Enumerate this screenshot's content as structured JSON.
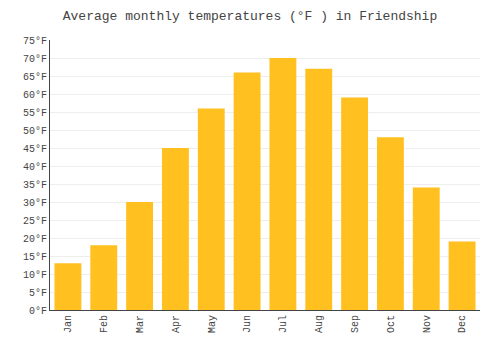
{
  "chart_data": {
    "type": "bar",
    "title": "Average monthly temperatures (°F ) in Friendship",
    "categories": [
      "Jan",
      "Feb",
      "Mar",
      "Apr",
      "May",
      "Jun",
      "Jul",
      "Aug",
      "Sep",
      "Oct",
      "Nov",
      "Dec"
    ],
    "values": [
      13,
      18,
      30,
      45,
      56,
      66,
      70,
      67,
      59,
      48,
      34,
      19
    ],
    "color": "#FFC020",
    "ylim": [
      0,
      75
    ],
    "yticks": [
      {
        "value": 0,
        "label": "0°F"
      },
      {
        "value": 5,
        "label": "5°F"
      },
      {
        "value": 10,
        "label": "10°F"
      },
      {
        "value": 15,
        "label": "15°F"
      },
      {
        "value": 20,
        "label": "20°F"
      },
      {
        "value": 25,
        "label": "25°F"
      },
      {
        "value": 30,
        "label": "30°F"
      },
      {
        "value": 35,
        "label": "35°F"
      },
      {
        "value": 40,
        "label": "40°F"
      },
      {
        "value": 45,
        "label": "45°F"
      },
      {
        "value": 50,
        "label": "50°F"
      },
      {
        "value": 55,
        "label": "55°F"
      },
      {
        "value": 60,
        "label": "60°F"
      },
      {
        "value": 65,
        "label": "65°F"
      },
      {
        "value": 70,
        "label": "70°F"
      },
      {
        "value": 75,
        "label": "75°F"
      }
    ],
    "grid": true
  }
}
